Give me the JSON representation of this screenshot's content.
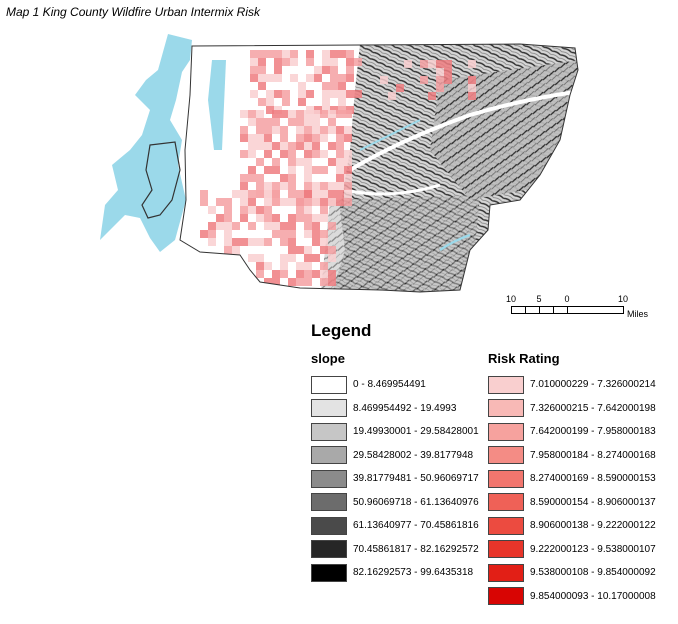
{
  "map": {
    "title": "Map 1 King County Wildfire Urban Intermix Risk",
    "colors": {
      "water": "#9bd9ea",
      "land": "#ffffff",
      "county_outline": "#333333",
      "terrain_dark": "#4a4a4a",
      "terrain_light": "#c8c8c8",
      "risk_low": "#f9cfd0",
      "risk_mid": "#f4a0a2",
      "risk_high": "#ee7d80"
    }
  },
  "scale_bar": {
    "ticks": [
      "10",
      "5",
      "0",
      "10"
    ],
    "units": "Miles"
  },
  "legend": {
    "title": "Legend",
    "slope": {
      "title": "slope",
      "entries": [
        {
          "label": "0 - 8.469954491",
          "color": "#ffffff"
        },
        {
          "label": "8.469954492 - 19.4993",
          "color": "#e3e3e3"
        },
        {
          "label": "19.49930001 - 29.58428001",
          "color": "#c6c6c6"
        },
        {
          "label": "29.58428002 - 39.8177948",
          "color": "#a9a9a9"
        },
        {
          "label": "39.81779481 - 50.96069717",
          "color": "#8b8b8b"
        },
        {
          "label": "50.96069718 - 61.13640976",
          "color": "#6c6c6c"
        },
        {
          "label": "61.13640977 - 70.45861816",
          "color": "#4a4a4a"
        },
        {
          "label": "70.45861817 - 82.16292572",
          "color": "#262626"
        },
        {
          "label": "82.16292573 - 99.6435318",
          "color": "#000000"
        }
      ]
    },
    "risk": {
      "title": "Risk Rating",
      "entries": [
        {
          "label": "7.010000229 - 7.326000214",
          "color": "#f9cfcf"
        },
        {
          "label": "7.326000215 - 7.642000198",
          "color": "#f8b9b6"
        },
        {
          "label": "7.642000199 - 7.958000183",
          "color": "#f6a29e"
        },
        {
          "label": "7.958000184 - 8.274000168",
          "color": "#f48c85"
        },
        {
          "label": "8.274000169 - 8.590000153",
          "color": "#f2766e"
        },
        {
          "label": "8.590000154 - 8.906000137",
          "color": "#ef6157"
        },
        {
          "label": "8.906000138 - 9.222000122",
          "color": "#ec4b40"
        },
        {
          "label": "9.222000123 - 9.538000107",
          "color": "#e8352a"
        },
        {
          "label": "9.538000108 - 9.854000092",
          "color": "#e21f16"
        },
        {
          "label": "9.854000093 - 10.17000008",
          "color": "#d80503"
        }
      ]
    }
  }
}
